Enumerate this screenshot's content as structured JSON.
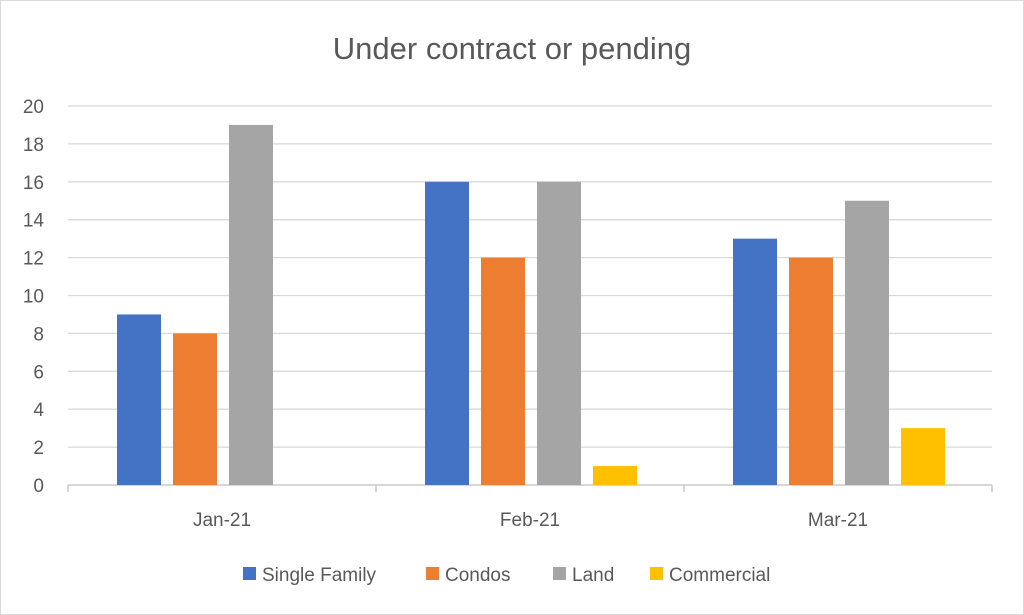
{
  "chart_data": {
    "type": "bar",
    "title": "Under contract or pending",
    "xlabel": "",
    "ylabel": "",
    "categories": [
      "Jan-21",
      "Feb-21",
      "Mar-21"
    ],
    "series": [
      {
        "name": "Single Family",
        "color": "#4472C4",
        "values": [
          9,
          16,
          13
        ]
      },
      {
        "name": "Condos",
        "color": "#ED7D31",
        "values": [
          8,
          12,
          12
        ]
      },
      {
        "name": "Land",
        "color": "#A5A5A5",
        "values": [
          19,
          16,
          15
        ]
      },
      {
        "name": "Commercial",
        "color": "#FFC000",
        "values": [
          0,
          1,
          3
        ]
      }
    ],
    "ylim": [
      0,
      20
    ],
    "yticks": [
      0,
      2,
      4,
      6,
      8,
      10,
      12,
      14,
      16,
      18,
      20
    ],
    "grid": true,
    "legend": "bottom"
  }
}
